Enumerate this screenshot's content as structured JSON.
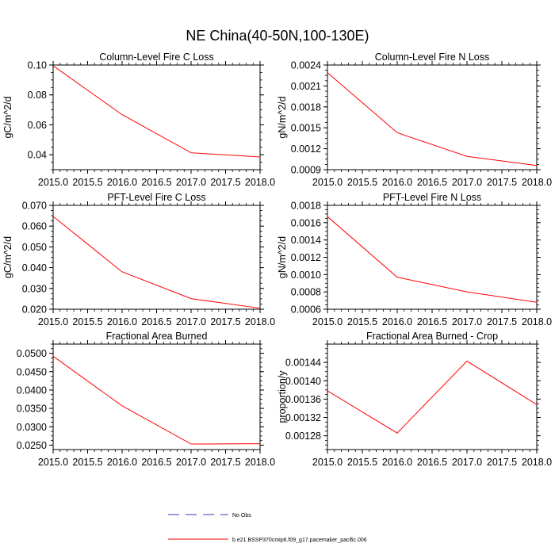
{
  "figure": {
    "title": "NE China(40-50N,100-130E)"
  },
  "legend": {
    "entries": [
      {
        "label": "No Obs",
        "color": "#3b3fa8",
        "style": "dashed"
      },
      {
        "label": "b.e21.BSSP370cmip6.f09_g17.pacemaker_pacific.006",
        "color": "#ff0000",
        "style": "solid"
      }
    ]
  },
  "chart_data": [
    {
      "type": "line",
      "title": "Column-Level Fire C Loss",
      "xlabel": "",
      "ylabel": "gC/m^2/d",
      "x": [
        2015,
        2016,
        2017,
        2018
      ],
      "xlim": [
        2015,
        2018
      ],
      "xticks": [
        "2015.0",
        "2015.5",
        "2016.0",
        "2016.5",
        "2017.0",
        "2017.5",
        "2018.0"
      ],
      "ylim": [
        0.03,
        0.1
      ],
      "yticks": [
        "0.04",
        "0.06",
        "0.08",
        "0.10"
      ],
      "series": [
        {
          "name": "b.e21.BSSP370cmip6.f09_g17.pacemaker_pacific.006",
          "color": "#ff0000",
          "values": [
            0.0995,
            0.0668,
            0.0413,
            0.0385
          ]
        }
      ]
    },
    {
      "type": "line",
      "title": "Column-Level Fire N Loss",
      "xlabel": "",
      "ylabel": "gN/m^2/d",
      "x": [
        2015,
        2016,
        2017,
        2018
      ],
      "xlim": [
        2015,
        2018
      ],
      "xticks": [
        "2015.0",
        "2015.5",
        "2016.0",
        "2016.5",
        "2017.0",
        "2017.5",
        "2018.0"
      ],
      "ylim": [
        0.0009,
        0.0024
      ],
      "yticks": [
        "0.0009",
        "0.0012",
        "0.0015",
        "0.0018",
        "0.0021",
        "0.0024"
      ],
      "series": [
        {
          "name": "b.e21.BSSP370cmip6.f09_g17.pacemaker_pacific.006",
          "color": "#ff0000",
          "values": [
            0.00229,
            0.00143,
            0.00109,
            0.00096
          ]
        }
      ]
    },
    {
      "type": "line",
      "title": "PFT-Level Fire C Loss",
      "xlabel": "",
      "ylabel": "gC/m^2/d",
      "x": [
        2015,
        2016,
        2017,
        2018
      ],
      "xlim": [
        2015,
        2018
      ],
      "xticks": [
        "2015.0",
        "2015.5",
        "2016.0",
        "2016.5",
        "2017.0",
        "2017.5",
        "2018.0"
      ],
      "ylim": [
        0.02,
        0.07
      ],
      "yticks": [
        "0.020",
        "0.030",
        "0.040",
        "0.050",
        "0.060",
        "0.070"
      ],
      "series": [
        {
          "name": "b.e21.BSSP370cmip6.f09_g17.pacemaker_pacific.006",
          "color": "#ff0000",
          "values": [
            0.0647,
            0.038,
            0.0251,
            0.0205
          ]
        }
      ]
    },
    {
      "type": "line",
      "title": "PFT-Level Fire N Loss",
      "xlabel": "",
      "ylabel": "gN/m^2/d",
      "x": [
        2015,
        2016,
        2017,
        2018
      ],
      "xlim": [
        2015,
        2018
      ],
      "xticks": [
        "2015.0",
        "2015.5",
        "2016.0",
        "2016.5",
        "2017.0",
        "2017.5",
        "2018.0"
      ],
      "ylim": [
        0.0006,
        0.0018
      ],
      "yticks": [
        "0.0006",
        "0.0008",
        "0.0010",
        "0.0012",
        "0.0014",
        "0.0016",
        "0.0018"
      ],
      "series": [
        {
          "name": "b.e21.BSSP370cmip6.f09_g17.pacemaker_pacific.006",
          "color": "#ff0000",
          "values": [
            0.00167,
            0.00097,
            0.0008,
            0.00068
          ]
        }
      ]
    },
    {
      "type": "line",
      "title": "Fractional Area Burned",
      "xlabel": "",
      "ylabel": "",
      "x": [
        2015,
        2016,
        2017,
        2018
      ],
      "xlim": [
        2015,
        2018
      ],
      "xticks": [
        "2015.0",
        "2015.5",
        "2016.0",
        "2016.5",
        "2017.0",
        "2017.5",
        "2018.0"
      ],
      "ylim": [
        0.0238,
        0.0525
      ],
      "yticks": [
        "0.0250",
        "0.0300",
        "0.0350",
        "0.0400",
        "0.0450",
        "0.0500"
      ],
      "series": [
        {
          "name": "b.e21.BSSP370cmip6.f09_g17.pacemaker_pacific.006",
          "color": "#ff0000",
          "values": [
            0.0492,
            0.0357,
            0.0253,
            0.0254
          ]
        }
      ]
    },
    {
      "type": "line",
      "title": "Fractional Area Burned - Crop",
      "xlabel": "",
      "ylabel": "proportion/y",
      "x": [
        2015,
        2016,
        2017,
        2018
      ],
      "xlim": [
        2015,
        2018
      ],
      "xticks": [
        "2015.0",
        "2015.5",
        "2016.0",
        "2016.5",
        "2017.0",
        "2017.5",
        "2018.0"
      ],
      "ylim": [
        0.00125,
        0.00148
      ],
      "yticks": [
        "0.00128",
        "0.00132",
        "0.00136",
        "0.00140",
        "0.00144"
      ],
      "series": [
        {
          "name": "b.e21.BSSP370cmip6.f09_g17.pacemaker_pacific.006",
          "color": "#ff0000",
          "values": [
            0.001378,
            0.001286,
            0.001443,
            0.001348
          ]
        }
      ]
    }
  ]
}
